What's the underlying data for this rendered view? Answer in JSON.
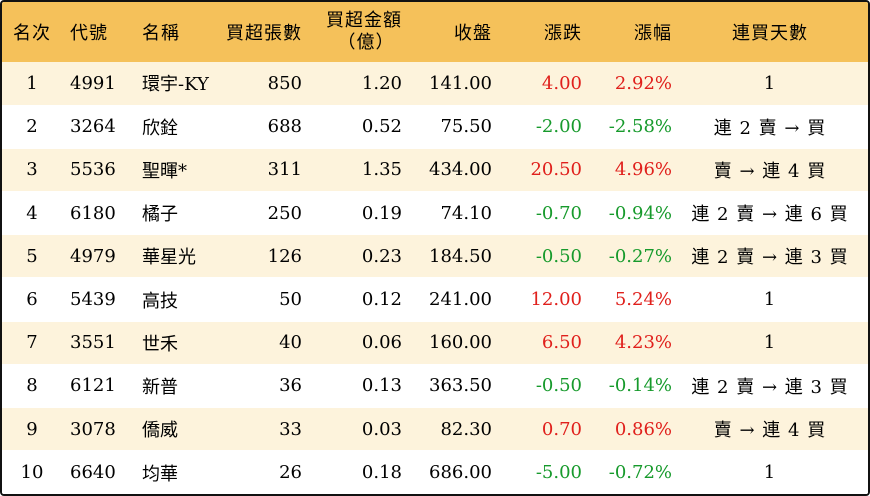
{
  "table": {
    "headers": {
      "rank": "名次",
      "code": "代號",
      "name": "名稱",
      "net_buy_lots": "買超張數",
      "net_buy_amount_line1": "買超金額",
      "net_buy_amount_line2": "（億）",
      "close": "收盤",
      "change": "漲跌",
      "change_pct": "漲幅",
      "buy_streak": "連買天數"
    },
    "rows": [
      {
        "rank": "1",
        "code": "4991",
        "name": "環宇-KY",
        "lots": "850",
        "amount": "1.20",
        "close": "141.00",
        "change": "4.00",
        "pct": "2.92%",
        "streak": "1",
        "dir": "up"
      },
      {
        "rank": "2",
        "code": "3264",
        "name": "欣銓",
        "lots": "688",
        "amount": "0.52",
        "close": "75.50",
        "change": "-2.00",
        "pct": "-2.58%",
        "streak": "連 2 賣 → 買",
        "dir": "down"
      },
      {
        "rank": "3",
        "code": "5536",
        "name": "聖暉*",
        "lots": "311",
        "amount": "1.35",
        "close": "434.00",
        "change": "20.50",
        "pct": "4.96%",
        "streak": "賣 → 連 4 買",
        "dir": "up"
      },
      {
        "rank": "4",
        "code": "6180",
        "name": "橘子",
        "lots": "250",
        "amount": "0.19",
        "close": "74.10",
        "change": "-0.70",
        "pct": "-0.94%",
        "streak": "連 2 賣 → 連 6 買",
        "dir": "down"
      },
      {
        "rank": "5",
        "code": "4979",
        "name": "華星光",
        "lots": "126",
        "amount": "0.23",
        "close": "184.50",
        "change": "-0.50",
        "pct": "-0.27%",
        "streak": "連 2 賣 → 連 3 買",
        "dir": "down"
      },
      {
        "rank": "6",
        "code": "5439",
        "name": "高技",
        "lots": "50",
        "amount": "0.12",
        "close": "241.00",
        "change": "12.00",
        "pct": "5.24%",
        "streak": "1",
        "dir": "up"
      },
      {
        "rank": "7",
        "code": "3551",
        "name": "世禾",
        "lots": "40",
        "amount": "0.06",
        "close": "160.00",
        "change": "6.50",
        "pct": "4.23%",
        "streak": "1",
        "dir": "up"
      },
      {
        "rank": "8",
        "code": "6121",
        "name": "新普",
        "lots": "36",
        "amount": "0.13",
        "close": "363.50",
        "change": "-0.50",
        "pct": "-0.14%",
        "streak": "連 2 賣 → 連 3 買",
        "dir": "down"
      },
      {
        "rank": "9",
        "code": "3078",
        "name": "僑威",
        "lots": "33",
        "amount": "0.03",
        "close": "82.30",
        "change": "0.70",
        "pct": "0.86%",
        "streak": "賣 → 連 4 買",
        "dir": "up"
      },
      {
        "rank": "10",
        "code": "6640",
        "name": "均華",
        "lots": "26",
        "amount": "0.18",
        "close": "686.00",
        "change": "-5.00",
        "pct": "-0.72%",
        "streak": "1",
        "dir": "down"
      }
    ]
  },
  "colors": {
    "header_bg": "#f5c15a",
    "odd_row_bg": "#fdf3dc",
    "even_row_bg": "#ffffff",
    "up": "#e0201c",
    "down": "#179a2c"
  }
}
